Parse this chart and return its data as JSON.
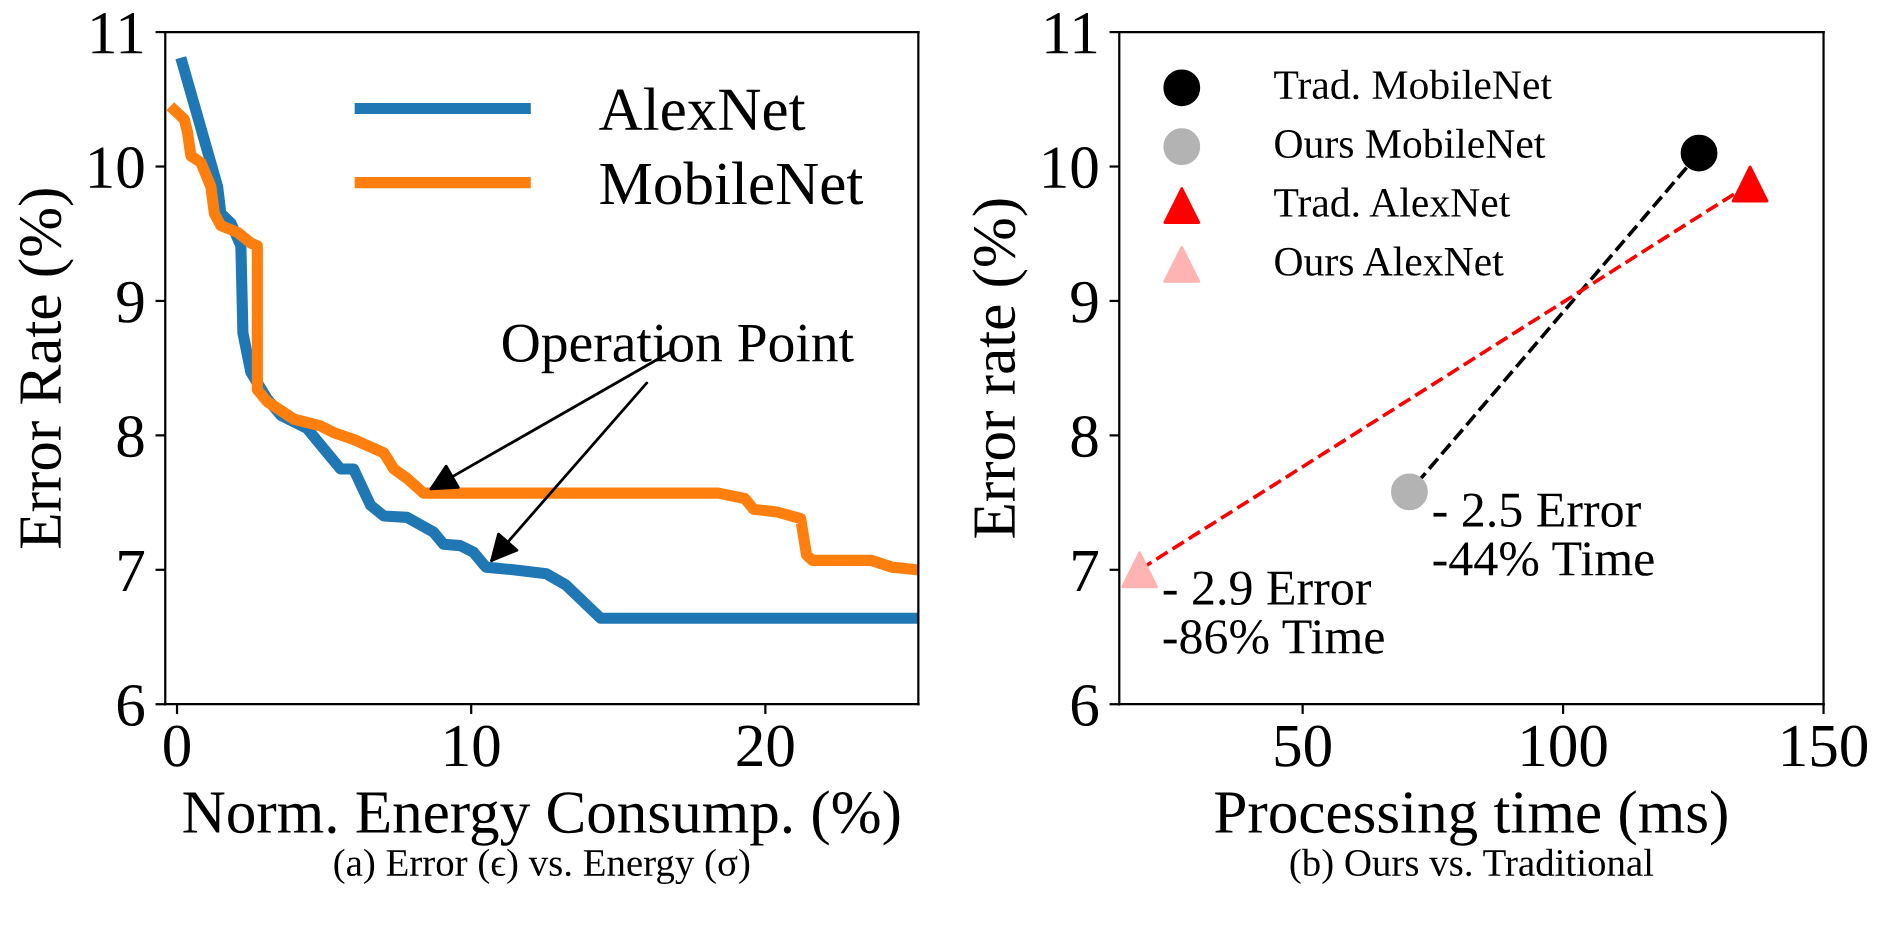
{
  "chart_data": [
    {
      "type": "line",
      "xlabel": "Norm. Energy Consump. (%)",
      "ylabel": "Error Rate (%)",
      "xlim": [
        -0.4,
        25.2
      ],
      "xticks": [
        0,
        10,
        20
      ],
      "ylim": [
        6,
        11
      ],
      "yticks": [
        6,
        7,
        8,
        9,
        10,
        11
      ],
      "grid": false,
      "legend": "top right",
      "series": [
        {
          "name": "AlexNet",
          "color": "#1f77b4",
          "x": [
            0.18,
            1.38,
            1.49,
            1.83,
            2.17,
            2.24,
            2.51,
            3.07,
            3.53,
            4.43,
            5.1,
            5.56,
            6.0,
            6.58,
            7.03,
            7.82,
            8.72,
            9.06,
            9.63,
            10.08,
            10.5,
            11.43,
            12.56,
            13.2,
            14.4,
            25.15
          ],
          "values": [
            10.77,
            9.85,
            9.65,
            9.58,
            9.41,
            8.76,
            8.47,
            8.27,
            8.15,
            8.05,
            7.87,
            7.75,
            7.75,
            7.48,
            7.4,
            7.39,
            7.28,
            7.19,
            7.18,
            7.13,
            7.02,
            7.0,
            6.97,
            6.89,
            6.64,
            6.64
          ]
        },
        {
          "name": "MobileNet",
          "color": "#ff7f0e",
          "x": [
            -0.09,
            0.25,
            0.36,
            0.47,
            0.81,
            1.15,
            1.27,
            1.49,
            2.06,
            2.51,
            2.73,
            2.73,
            3.07,
            3.98,
            4.88,
            5.34,
            6.0,
            7.03,
            7.37,
            7.82,
            8.38,
            18.4,
            19.3,
            19.6,
            20.4,
            21.2,
            21.4,
            21.6,
            23.6,
            24.3,
            25.15
          ],
          "values": [
            10.42,
            10.35,
            10.25,
            10.08,
            10.03,
            9.85,
            9.65,
            9.56,
            9.51,
            9.43,
            9.41,
            8.34,
            8.25,
            8.12,
            8.07,
            8.02,
            7.97,
            7.87,
            7.75,
            7.68,
            7.57,
            7.57,
            7.53,
            7.45,
            7.43,
            7.38,
            7.11,
            7.07,
            7.07,
            7.02,
            7.0
          ]
        }
      ],
      "annotations": [
        {
          "text": "Operation Point",
          "x": 10.5,
          "y": 7.02
        },
        "(a) Error (ϵ) vs. Energy (σ)"
      ]
    },
    {
      "type": "scatter",
      "xlabel": "Processing time (ms)",
      "ylabel": "Error rate (%)",
      "xlim": [
        14.8,
        150
      ],
      "xticks": [
        50,
        100,
        150
      ],
      "ylim": [
        6,
        11
      ],
      "yticks": [
        6,
        7,
        8,
        9,
        10,
        11
      ],
      "grid": false,
      "legend": "top left",
      "series": [
        {
          "type": "line",
          "color": "#000000",
          "line_style": "dashed",
          "marker": "none",
          "x": [
            126.1,
            70.5
          ],
          "values": [
            10.1,
            7.58
          ]
        },
        {
          "type": "line",
          "color": "#ff0000",
          "line_style": "dashed",
          "marker": "none",
          "x": [
            135.9,
            18.7
          ],
          "values": [
            9.87,
            7.0
          ]
        },
        {
          "name": "Trad. MobileNet",
          "color": "#000000",
          "marker": "circle",
          "x": [
            126.1
          ],
          "values": [
            10.1
          ]
        },
        {
          "name": "Ours MobileNet",
          "color": "#b3b3b3",
          "marker": "circle",
          "x": [
            70.5
          ],
          "values": [
            7.58
          ]
        },
        {
          "name": "Trad. AlexNet",
          "color": "#ff0000",
          "marker": "triangle",
          "x": [
            135.9
          ],
          "values": [
            9.87
          ]
        },
        {
          "name": "Ours AlexNet",
          "color": "#ffb3b3",
          "marker": "triangle",
          "x": [
            18.7
          ],
          "values": [
            7.0
          ]
        }
      ],
      "annotations": [
        {
          "text": "- 2.5 Error\n-44% Time",
          "x": 70.5,
          "y": 7.58
        },
        {
          "text": "- 2.9 Error\n-86% Time",
          "x": 18.7,
          "y": 7.0
        },
        "(b) Ours vs. Traditional"
      ]
    }
  ]
}
